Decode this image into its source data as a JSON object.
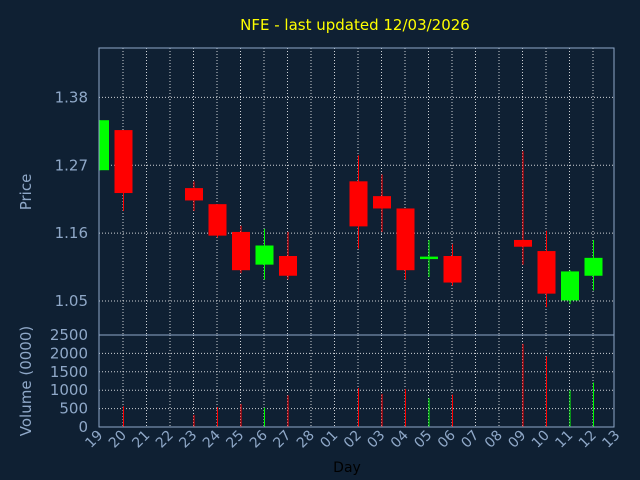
{
  "chart_data": [
    {
      "type": "candlestick",
      "title": "NFE - last updated 12/03/2026",
      "ylabel": "Price",
      "ylim": [
        0.995,
        1.46
      ],
      "yticks": [
        "1.05",
        "1.16",
        "1.27",
        "1.38"
      ],
      "x_categories": [
        "19",
        "20",
        "21",
        "22",
        "23",
        "24",
        "25",
        "26",
        "27",
        "28",
        "01",
        "02",
        "03",
        "04",
        "05",
        "06",
        "07",
        "08",
        "09",
        "10",
        "11",
        "12",
        "13"
      ],
      "candles": [
        {
          "day": "19",
          "open": 1.262,
          "high": 1.343,
          "low": 1.262,
          "close": 1.343
        },
        {
          "day": "20",
          "open": 1.327,
          "high": 1.327,
          "low": 1.196,
          "close": 1.225
        },
        {
          "day": "23",
          "open": 1.233,
          "high": 1.244,
          "low": 1.196,
          "close": 1.213
        },
        {
          "day": "24",
          "open": 1.207,
          "high": 1.207,
          "low": 1.153,
          "close": 1.156
        },
        {
          "day": "25",
          "open": 1.162,
          "high": 1.172,
          "low": 1.095,
          "close": 1.1
        },
        {
          "day": "26",
          "open": 1.109,
          "high": 1.167,
          "low": 1.085,
          "close": 1.14
        },
        {
          "day": "27",
          "open": 1.123,
          "high": 1.162,
          "low": 1.085,
          "close": 1.091
        },
        {
          "day": "02",
          "open": 1.244,
          "high": 1.286,
          "low": 1.135,
          "close": 1.171
        },
        {
          "day": "03",
          "open": 1.22,
          "high": 1.255,
          "low": 1.162,
          "close": 1.2
        },
        {
          "day": "04",
          "open": 1.2,
          "high": 1.2,
          "low": 1.085,
          "close": 1.1
        },
        {
          "day": "05",
          "open": 1.118,
          "high": 1.149,
          "low": 1.089,
          "close": 1.122
        },
        {
          "day": "06",
          "open": 1.123,
          "high": 1.142,
          "low": 1.075,
          "close": 1.08
        },
        {
          "day": "09",
          "open": 1.149,
          "high": 1.293,
          "low": 1.109,
          "close": 1.138
        },
        {
          "day": "10",
          "open": 1.131,
          "high": 1.164,
          "low": 1.04,
          "close": 1.062
        },
        {
          "day": "11",
          "open": 1.051,
          "high": 1.1,
          "low": 1.045,
          "close": 1.098
        },
        {
          "day": "12",
          "open": 1.091,
          "high": 1.149,
          "low": 1.067,
          "close": 1.12
        }
      ]
    },
    {
      "type": "bar",
      "ylabel": "Volume (0000)",
      "xlabel": "Day",
      "ylim": [
        0,
        2500
      ],
      "yticks": [
        "0",
        "500",
        "1000",
        "1500",
        "2000",
        "2500"
      ],
      "volumes": [
        {
          "day": "19",
          "value": 0,
          "up": true
        },
        {
          "day": "20",
          "value": 560,
          "up": false
        },
        {
          "day": "23",
          "value": 330,
          "up": false
        },
        {
          "day": "24",
          "value": 540,
          "up": false
        },
        {
          "day": "25",
          "value": 620,
          "up": false
        },
        {
          "day": "26",
          "value": 520,
          "up": true
        },
        {
          "day": "27",
          "value": 860,
          "up": false
        },
        {
          "day": "02",
          "value": 1060,
          "up": false
        },
        {
          "day": "03",
          "value": 900,
          "up": false
        },
        {
          "day": "04",
          "value": 1030,
          "up": false
        },
        {
          "day": "05",
          "value": 780,
          "up": true
        },
        {
          "day": "06",
          "value": 880,
          "up": false
        },
        {
          "day": "09",
          "value": 2260,
          "up": false
        },
        {
          "day": "10",
          "value": 1920,
          "up": false
        },
        {
          "day": "11",
          "value": 1000,
          "up": true
        },
        {
          "day": "12",
          "value": 1210,
          "up": true
        }
      ]
    }
  ],
  "colors": {
    "background": "#0f2033",
    "up": "#00ff00",
    "down": "#ff0000",
    "grid": "#ffffff",
    "title": "#ffff00",
    "axis_text": "#8fa8c8"
  }
}
